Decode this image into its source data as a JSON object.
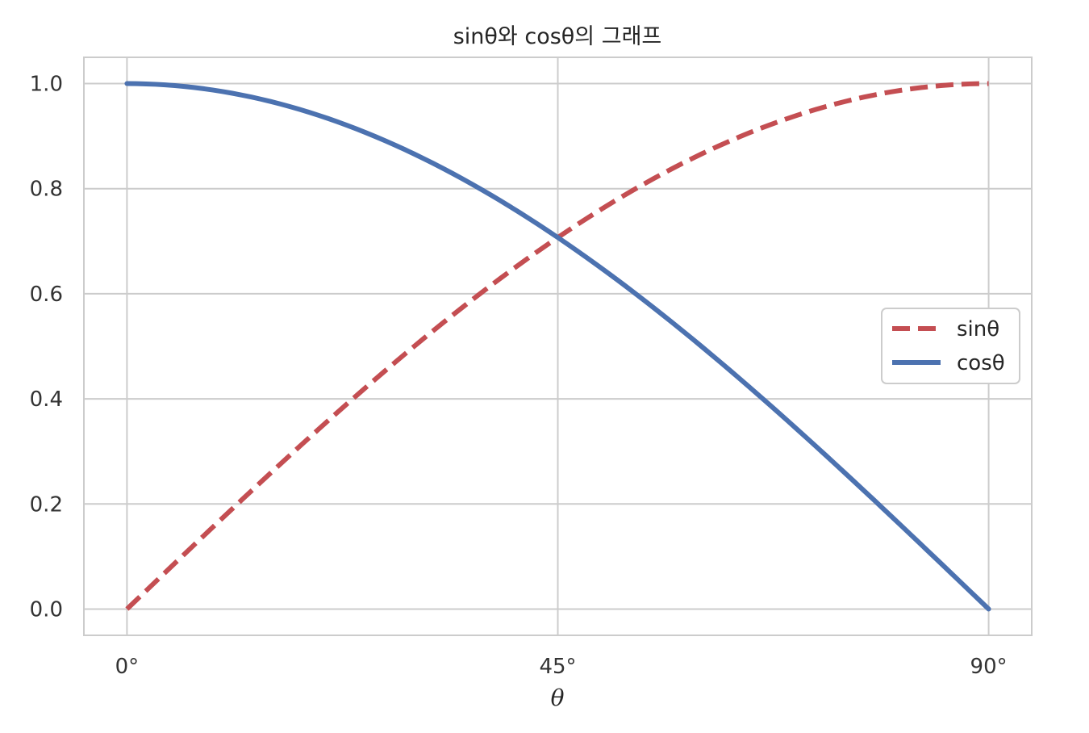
{
  "chart_data": {
    "type": "line",
    "title": "sinθ와 cosθ의 그래프",
    "xlabel": "θ",
    "ylabel": "",
    "xlim": [
      -4.5,
      94.5
    ],
    "ylim": [
      -0.05,
      1.05
    ],
    "grid": true,
    "legend_position": "center-right",
    "x_ticks": [
      {
        "value": 0,
        "label": "0°"
      },
      {
        "value": 45,
        "label": "45°"
      },
      {
        "value": 90,
        "label": "90°"
      }
    ],
    "y_ticks": [
      {
        "value": 0.0,
        "label": "0.0"
      },
      {
        "value": 0.2,
        "label": "0.2"
      },
      {
        "value": 0.4,
        "label": "0.4"
      },
      {
        "value": 0.6,
        "label": "0.6"
      },
      {
        "value": 0.8,
        "label": "0.8"
      },
      {
        "value": 1.0,
        "label": "1.0"
      }
    ],
    "x": [
      0,
      5,
      10,
      15,
      20,
      25,
      30,
      35,
      40,
      45,
      50,
      55,
      60,
      65,
      70,
      75,
      80,
      85,
      90
    ],
    "series": [
      {
        "name": "sinθ",
        "color": "#c44e52",
        "style": "dashed",
        "values": [
          0.0,
          0.087,
          0.174,
          0.259,
          0.342,
          0.423,
          0.5,
          0.574,
          0.643,
          0.707,
          0.766,
          0.819,
          0.866,
          0.906,
          0.94,
          0.966,
          0.985,
          0.996,
          1.0
        ]
      },
      {
        "name": "cosθ",
        "color": "#4c72b0",
        "style": "solid",
        "values": [
          1.0,
          0.996,
          0.985,
          0.966,
          0.94,
          0.906,
          0.866,
          0.819,
          0.766,
          0.707,
          0.643,
          0.574,
          0.5,
          0.423,
          0.342,
          0.259,
          0.174,
          0.087,
          0.0
        ]
      }
    ]
  },
  "colors": {
    "grid": "#cccccc",
    "frame": "#cccccc",
    "background": "#ffffff"
  }
}
